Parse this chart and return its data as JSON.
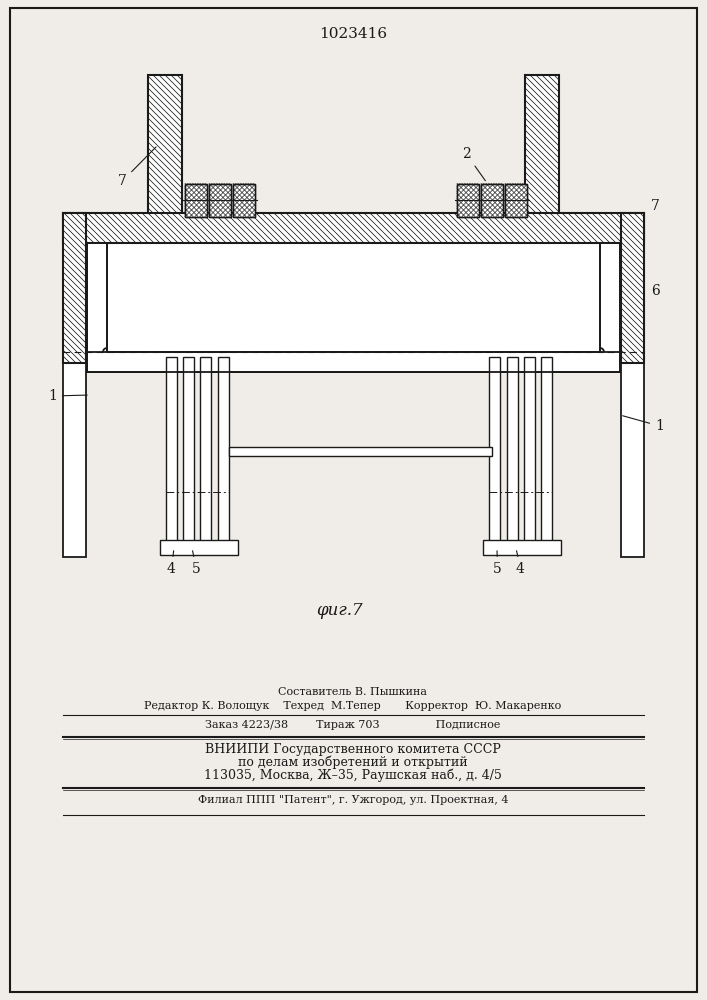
{
  "title": "1023416",
  "fig_label": "φиг.7",
  "bg_color": "#f0ede8",
  "line_color": "#1a1a1a",
  "footer_lines": [
    "Составитель В. Пышкина",
    "Редактор К. Волощук    Техред  М.Тепер       Корректор  Ю. Макаренко",
    "Заказ 4223/38        Тираж 703                Подписное",
    "ВНИИПИ Государственного комитета СССР",
    "по делам изобретений и открытий",
    "113035, Москва, Ж–35, Раушская наб., д. 4/5",
    "Филиал ППП \"Патент\", г. Ужгород, ул. Проектная, 4"
  ]
}
